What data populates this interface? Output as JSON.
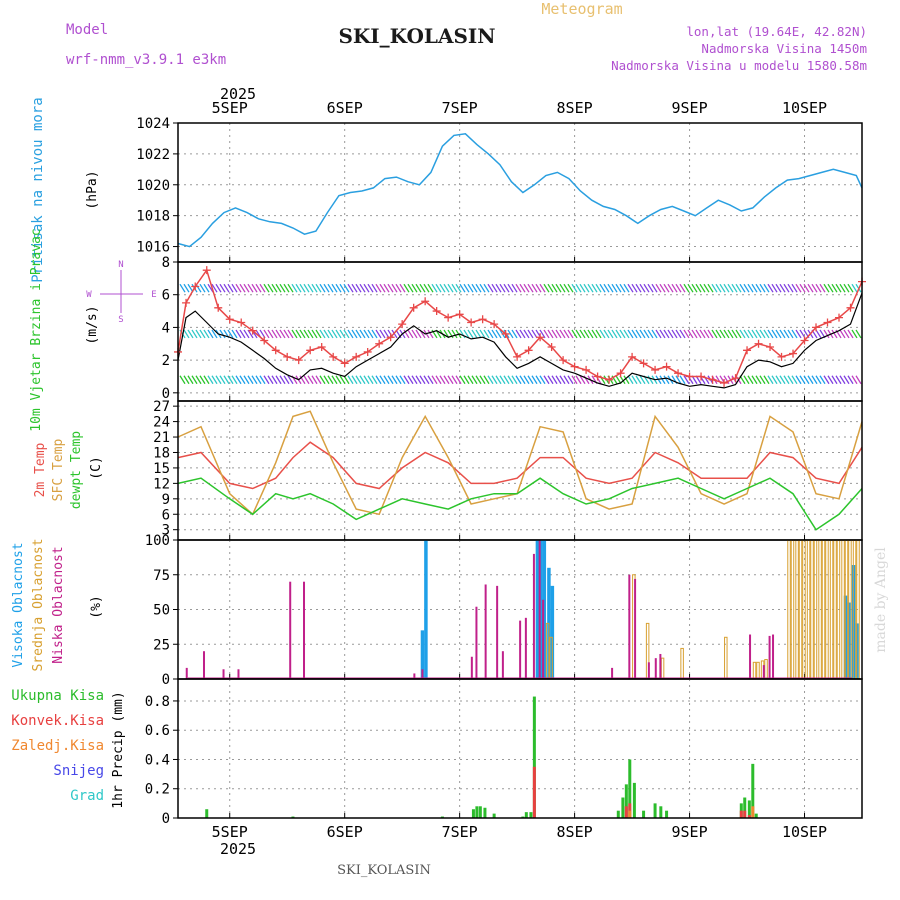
{
  "header": {
    "model_label": "Model",
    "model_name": "wrf-nmm_v3.9.1  e3km",
    "title": "Meteogram",
    "station": "SKI_KOLASIN",
    "coords": "lon,lat (19.64E, 42.82N)",
    "elevation": "Nadmorska Visina 1450m",
    "model_elevation": "Nadmorska Visina u modelu 1580.58m",
    "footer_station": "SKI_KOLASIN",
    "watermark": "made by Angel"
  },
  "time_axis": {
    "year": "2025",
    "day_labels": [
      "5SEP",
      "6SEP",
      "7SEP",
      "8SEP",
      "9SEP",
      "10SEP"
    ],
    "range_days": [
      4.55,
      10.5
    ]
  },
  "colors": {
    "pressure": "#2a9fe0",
    "wind_speed": "#000000",
    "wind_gust": "#e84848",
    "t2m": "#e8504a",
    "tsfc": "#d8a040",
    "dewpoint": "#2cc42c",
    "high_cloud": "#1ea0e8",
    "mid_cloud": "#d8a030",
    "low_cloud": "#c0208a",
    "total_precip": "#2cbc2c",
    "conv_precip": "#e84040",
    "freezing": "#f08830",
    "snow": "#4848e8",
    "hail": "#30c8c8",
    "label_purple": "#b050d0"
  },
  "chart_data": [
    {
      "type": "line",
      "panel": "pressure",
      "ylabel": "Pritisak na nivou mora",
      "unit": "(hPa)",
      "ylim": [
        1015,
        1024
      ],
      "yticks": [
        1016,
        1018,
        1020,
        1022,
        1024
      ],
      "series": [
        {
          "name": "sea level pressure",
          "x": [
            4.55,
            4.65,
            4.75,
            4.85,
            4.95,
            5.05,
            5.15,
            5.25,
            5.35,
            5.45,
            5.55,
            5.65,
            5.75,
            5.85,
            5.95,
            6.05,
            6.15,
            6.25,
            6.35,
            6.45,
            6.55,
            6.65,
            6.75,
            6.85,
            6.95,
            7.05,
            7.15,
            7.25,
            7.35,
            7.45,
            7.55,
            7.65,
            7.75,
            7.85,
            7.95,
            8.05,
            8.15,
            8.25,
            8.35,
            8.45,
            8.55,
            8.65,
            8.75,
            8.85,
            8.95,
            9.05,
            9.15,
            9.25,
            9.35,
            9.45,
            9.55,
            9.65,
            9.75,
            9.85,
            9.95,
            10.05,
            10.15,
            10.25,
            10.35,
            10.45,
            10.5
          ],
          "values": [
            1016.2,
            1016.0,
            1016.6,
            1017.5,
            1018.2,
            1018.5,
            1018.2,
            1017.8,
            1017.6,
            1017.5,
            1017.2,
            1016.8,
            1017.0,
            1018.2,
            1019.3,
            1019.5,
            1019.6,
            1019.8,
            1020.4,
            1020.5,
            1020.2,
            1020.0,
            1020.8,
            1022.5,
            1023.2,
            1023.3,
            1022.6,
            1022.0,
            1021.3,
            1020.2,
            1019.5,
            1020.0,
            1020.6,
            1020.8,
            1020.4,
            1019.6,
            1019.0,
            1018.6,
            1018.4,
            1018.0,
            1017.5,
            1018.0,
            1018.4,
            1018.6,
            1018.3,
            1018.0,
            1018.5,
            1019.0,
            1018.7,
            1018.3,
            1018.5,
            1019.2,
            1019.8,
            1020.3,
            1020.4,
            1020.6,
            1020.8,
            1021.0,
            1020.8,
            1020.6,
            1019.8
          ]
        }
      ]
    },
    {
      "type": "line",
      "panel": "wind",
      "ylabel": "10m Vjetar Brzina i Pravac",
      "unit": "(m/s)",
      "ylim": [
        -0.5,
        8
      ],
      "yticks": [
        0,
        2,
        4,
        6,
        8
      ],
      "compass": {
        "n": "N",
        "s": "S",
        "e": "E",
        "w": "W"
      },
      "barb_rows": [
        0.8,
        3.6,
        6.4
      ],
      "series": [
        {
          "name": "wind speed",
          "x": [
            4.55,
            4.62,
            4.7,
            4.8,
            4.9,
            5.0,
            5.1,
            5.2,
            5.3,
            5.4,
            5.5,
            5.6,
            5.7,
            5.8,
            5.9,
            6.0,
            6.1,
            6.2,
            6.3,
            6.4,
            6.5,
            6.6,
            6.7,
            6.8,
            6.9,
            7.0,
            7.1,
            7.2,
            7.3,
            7.4,
            7.5,
            7.6,
            7.7,
            7.8,
            7.9,
            8.0,
            8.1,
            8.2,
            8.3,
            8.4,
            8.5,
            8.6,
            8.7,
            8.8,
            8.9,
            9.0,
            9.1,
            9.2,
            9.3,
            9.4,
            9.5,
            9.6,
            9.7,
            9.8,
            9.9,
            10.0,
            10.1,
            10.2,
            10.3,
            10.4,
            10.5
          ],
          "values": [
            2.0,
            4.6,
            5.0,
            4.3,
            3.6,
            3.4,
            3.1,
            2.6,
            2.1,
            1.5,
            1.1,
            0.8,
            1.4,
            1.5,
            1.2,
            1.0,
            1.6,
            2.0,
            2.4,
            2.8,
            3.6,
            4.1,
            3.6,
            3.8,
            3.4,
            3.6,
            3.3,
            3.4,
            3.1,
            2.2,
            1.5,
            1.8,
            2.2,
            1.8,
            1.4,
            1.2,
            0.9,
            0.6,
            0.4,
            0.6,
            1.2,
            1.0,
            0.8,
            0.9,
            0.6,
            0.4,
            0.5,
            0.4,
            0.3,
            0.5,
            1.6,
            2.0,
            1.9,
            1.6,
            1.8,
            2.6,
            3.2,
            3.5,
            3.8,
            4.2,
            6.1
          ]
        },
        {
          "name": "wind gust",
          "x": [
            4.55,
            4.62,
            4.7,
            4.8,
            4.9,
            5.0,
            5.1,
            5.2,
            5.3,
            5.4,
            5.5,
            5.6,
            5.7,
            5.8,
            5.9,
            6.0,
            6.1,
            6.2,
            6.3,
            6.4,
            6.5,
            6.6,
            6.7,
            6.8,
            6.9,
            7.0,
            7.1,
            7.2,
            7.3,
            7.4,
            7.5,
            7.6,
            7.7,
            7.8,
            7.9,
            8.0,
            8.1,
            8.2,
            8.3,
            8.4,
            8.5,
            8.6,
            8.7,
            8.8,
            8.9,
            9.0,
            9.1,
            9.2,
            9.3,
            9.4,
            9.5,
            9.6,
            9.7,
            9.8,
            9.9,
            10.0,
            10.1,
            10.2,
            10.3,
            10.4,
            10.5
          ],
          "values": [
            2.5,
            5.5,
            6.5,
            7.5,
            5.2,
            4.5,
            4.3,
            3.8,
            3.2,
            2.6,
            2.2,
            2.0,
            2.6,
            2.8,
            2.2,
            1.8,
            2.2,
            2.5,
            3.0,
            3.4,
            4.2,
            5.2,
            5.6,
            5.0,
            4.6,
            4.8,
            4.3,
            4.5,
            4.2,
            3.6,
            2.2,
            2.6,
            3.4,
            2.8,
            2.0,
            1.6,
            1.4,
            1.0,
            0.8,
            1.2,
            2.2,
            1.8,
            1.4,
            1.6,
            1.2,
            1.0,
            1.0,
            0.8,
            0.6,
            0.9,
            2.6,
            3.0,
            2.8,
            2.2,
            2.4,
            3.2,
            4.0,
            4.3,
            4.6,
            5.2,
            6.8
          ]
        }
      ]
    },
    {
      "type": "line",
      "panel": "temperature",
      "ylabel": "2m Temp | SFC Temp | dewpt Temp",
      "unit": "(C)",
      "ylim": [
        1,
        28
      ],
      "yticks": [
        3,
        6,
        9,
        12,
        15,
        18,
        21,
        24,
        27
      ],
      "series": [
        {
          "name": "2m Temp",
          "x": [
            4.55,
            4.75,
            5.0,
            5.2,
            5.4,
            5.55,
            5.7,
            5.9,
            6.1,
            6.3,
            6.5,
            6.7,
            6.9,
            7.1,
            7.3,
            7.5,
            7.7,
            7.9,
            8.1,
            8.3,
            8.5,
            8.7,
            8.9,
            9.1,
            9.3,
            9.5,
            9.7,
            9.9,
            10.1,
            10.3,
            10.5
          ],
          "values": [
            17,
            18,
            12,
            11,
            13,
            17,
            20,
            17,
            12,
            11,
            15,
            18,
            16,
            12,
            12,
            13,
            17,
            17,
            13,
            12,
            13,
            18,
            16,
            13,
            13,
            13,
            18,
            17,
            13,
            12,
            19
          ]
        },
        {
          "name": "SFC Temp",
          "x": [
            4.55,
            4.75,
            5.0,
            5.2,
            5.4,
            5.55,
            5.7,
            5.9,
            6.1,
            6.3,
            6.5,
            6.7,
            6.9,
            7.1,
            7.3,
            7.5,
            7.7,
            7.9,
            8.1,
            8.3,
            8.5,
            8.7,
            8.9,
            9.1,
            9.3,
            9.5,
            9.7,
            9.9,
            10.1,
            10.3,
            10.5
          ],
          "values": [
            21,
            23,
            10,
            6,
            16,
            25,
            26,
            16,
            7,
            6,
            17,
            25,
            17,
            8,
            9,
            10,
            23,
            22,
            9,
            7,
            8,
            25,
            19,
            10,
            8,
            10,
            25,
            22,
            10,
            9,
            24
          ]
        },
        {
          "name": "dewpt Temp",
          "x": [
            4.55,
            4.75,
            5.0,
            5.2,
            5.4,
            5.55,
            5.7,
            5.9,
            6.1,
            6.3,
            6.5,
            6.7,
            6.9,
            7.1,
            7.3,
            7.5,
            7.7,
            7.9,
            8.1,
            8.3,
            8.5,
            8.7,
            8.9,
            9.1,
            9.3,
            9.5,
            9.7,
            9.9,
            10.1,
            10.3,
            10.5
          ],
          "values": [
            12,
            13,
            9,
            6,
            10,
            9,
            10,
            8,
            5,
            7,
            9,
            8,
            7,
            9,
            10,
            10,
            13,
            10,
            8,
            9,
            11,
            12,
            13,
            11,
            9,
            11,
            13,
            10,
            3,
            6,
            11
          ]
        }
      ]
    },
    {
      "type": "bar",
      "panel": "cloud",
      "ylabel": "Visoka Oblacnost | Srednja Oblacnost | Niska Oblacnost",
      "unit": "(%)",
      "ylim": [
        0,
        100
      ],
      "yticks": [
        0,
        25,
        50,
        75,
        100
      ],
      "series": [
        {
          "name": "Visoka Oblacnost",
          "x": [
            6.67,
            6.7,
            7.67,
            7.7,
            7.73,
            7.77,
            7.8,
            10.35,
            10.38,
            10.42,
            10.45
          ],
          "values": [
            35,
            100,
            100,
            100,
            100,
            80,
            67,
            60,
            55,
            82,
            40
          ]
        },
        {
          "name": "Srednja Oblacnost",
          "x": [
            7.75,
            7.78,
            8.5,
            8.62,
            8.75,
            8.92,
            9.3,
            9.55,
            9.58,
            9.62,
            9.65,
            9.85,
            9.88,
            9.92,
            9.95,
            9.98,
            10.02,
            10.05,
            10.08,
            10.12,
            10.15,
            10.18,
            10.22,
            10.25,
            10.28,
            10.32,
            10.35,
            10.38,
            10.42,
            10.45
          ],
          "values": [
            40,
            30,
            75,
            40,
            15,
            22,
            30,
            12,
            12,
            13,
            14,
            100,
            100,
            100,
            100,
            100,
            100,
            100,
            100,
            100,
            100,
            100,
            100,
            100,
            100,
            100,
            100,
            100,
            100,
            100
          ]
        },
        {
          "name": "Niska Oblacnost",
          "x": [
            4.6,
            4.75,
            4.92,
            5.05,
            5.5,
            5.62,
            6.58,
            6.65,
            7.08,
            7.12,
            7.2,
            7.3,
            7.35,
            7.5,
            7.55,
            7.62,
            7.67,
            7.7,
            8.3,
            8.45,
            8.5,
            8.62,
            8.68,
            8.72,
            9.5,
            9.62,
            9.67,
            9.7
          ],
          "values": [
            8,
            20,
            7,
            7,
            70,
            70,
            4,
            7,
            16,
            52,
            68,
            67,
            20,
            42,
            44,
            90,
            100,
            57,
            8,
            75,
            72,
            12,
            15,
            18,
            32,
            10,
            31,
            32
          ]
        }
      ]
    },
    {
      "type": "bar",
      "panel": "precipitation",
      "ylabel": "1hr Precip (mm)",
      "legend": [
        "Ukupna Kisa",
        "Konvek.Kisa",
        "Zaledj.Kisa",
        "Snijeg",
        "Grad"
      ],
      "ylim": [
        0,
        0.95
      ],
      "yticks": [
        0,
        0.2,
        0.4,
        0.6,
        0.8
      ],
      "series": [
        {
          "name": "Ukupna Kisa",
          "x": [
            4.8,
            5.55,
            6.85,
            7.12,
            7.15,
            7.18,
            7.22,
            7.3,
            7.55,
            7.58,
            7.62,
            7.65,
            8.38,
            8.42,
            8.45,
            8.48,
            8.52,
            8.6,
            8.7,
            8.75,
            8.8,
            9.45,
            9.48,
            9.52,
            9.55,
            9.58
          ],
          "values": [
            0.06,
            0.01,
            0.01,
            0.06,
            0.08,
            0.08,
            0.07,
            0.03,
            0.01,
            0.04,
            0.04,
            0.83,
            0.05,
            0.14,
            0.23,
            0.4,
            0.24,
            0.05,
            0.1,
            0.08,
            0.05,
            0.1,
            0.14,
            0.12,
            0.37,
            0.03
          ]
        },
        {
          "name": "Konvek.Kisa",
          "x": [
            7.65,
            8.45,
            8.48,
            9.45,
            9.48,
            9.52
          ],
          "values": [
            0.35,
            0.08,
            0.1,
            0.05,
            0.05,
            0.02
          ]
        },
        {
          "name": "Zaledj.Kisa",
          "x": [
            8.48,
            9.55
          ],
          "values": [
            0.05,
            0.08
          ]
        },
        {
          "name": "Snijeg",
          "x": [],
          "values": []
        },
        {
          "name": "Grad",
          "x": [],
          "values": []
        }
      ]
    }
  ]
}
